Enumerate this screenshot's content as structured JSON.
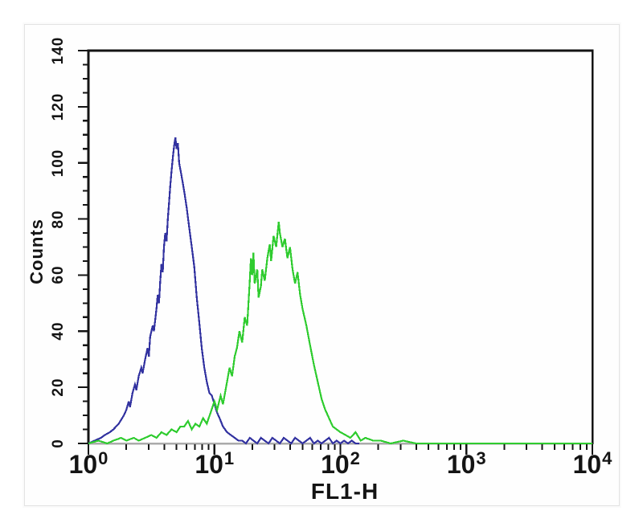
{
  "chart_data": {
    "type": "line",
    "subtype": "flow-cytometry-overlay-histogram",
    "title": "",
    "xlabel": "FL1-H",
    "ylabel": "Counts",
    "x_scale": "log",
    "xlim": [
      1,
      10000
    ],
    "ylim": [
      0,
      140
    ],
    "grid": false,
    "legend": null,
    "y_tick_labels": [
      "0",
      "20",
      "40",
      "60",
      "80",
      "100",
      "120",
      "140"
    ],
    "y_major_step": 20,
    "y_minor_step": 5,
    "x_tick_labels": [
      {
        "base": "10",
        "exp": "0"
      },
      {
        "base": "10",
        "exp": "1"
      },
      {
        "base": "10",
        "exp": "2"
      },
      {
        "base": "10",
        "exp": "3"
      },
      {
        "base": "10",
        "exp": "4"
      }
    ],
    "colors": {
      "blue_series": "#3232A0",
      "green_series": "#2FCC2F",
      "frame": "#141414",
      "baseline": "#ABABAB",
      "text": "#141414"
    },
    "series": [
      {
        "name": "blue-histogram",
        "color": "#3232A0",
        "peak": {
          "x": 4.9,
          "counts": 109
        },
        "points": [
          [
            1.0,
            0
          ],
          [
            1.12,
            1
          ],
          [
            1.26,
            2
          ],
          [
            1.35,
            3
          ],
          [
            1.48,
            4
          ],
          [
            1.58,
            5
          ],
          [
            1.74,
            7
          ],
          [
            1.91,
            10
          ],
          [
            2.0,
            12
          ],
          [
            2.09,
            15
          ],
          [
            2.14,
            13
          ],
          [
            2.24,
            18
          ],
          [
            2.34,
            21
          ],
          [
            2.4,
            19
          ],
          [
            2.51,
            24
          ],
          [
            2.63,
            27
          ],
          [
            2.69,
            25
          ],
          [
            2.82,
            30
          ],
          [
            2.95,
            34
          ],
          [
            3.02,
            31
          ],
          [
            3.09,
            38
          ],
          [
            3.24,
            42
          ],
          [
            3.31,
            40
          ],
          [
            3.47,
            48
          ],
          [
            3.55,
            53
          ],
          [
            3.63,
            50
          ],
          [
            3.72,
            58
          ],
          [
            3.8,
            64
          ],
          [
            3.89,
            61
          ],
          [
            3.98,
            70
          ],
          [
            4.07,
            75
          ],
          [
            4.17,
            72
          ],
          [
            4.27,
            80
          ],
          [
            4.37,
            86
          ],
          [
            4.47,
            92
          ],
          [
            4.57,
            97
          ],
          [
            4.68,
            102
          ],
          [
            4.79,
            106
          ],
          [
            4.9,
            109
          ],
          [
            5.01,
            105
          ],
          [
            5.13,
            107
          ],
          [
            5.25,
            100
          ],
          [
            5.5,
            95
          ],
          [
            5.75,
            90
          ],
          [
            6.03,
            84
          ],
          [
            6.31,
            77
          ],
          [
            6.61,
            70
          ],
          [
            6.92,
            63
          ],
          [
            7.24,
            52
          ],
          [
            7.59,
            43
          ],
          [
            7.94,
            34
          ],
          [
            8.32,
            27
          ],
          [
            8.71,
            22
          ],
          [
            9.12,
            18
          ],
          [
            9.55,
            17
          ],
          [
            10.0,
            14
          ],
          [
            10.5,
            11
          ],
          [
            11.0,
            9
          ],
          [
            11.7,
            6
          ],
          [
            12.6,
            4
          ],
          [
            13.5,
            3
          ],
          [
            14.5,
            2
          ],
          [
            15.5,
            1
          ],
          [
            16.6,
            1
          ],
          [
            17.8,
            0
          ],
          [
            19.1,
            2
          ],
          [
            20.4,
            1
          ],
          [
            21.9,
            0
          ],
          [
            23.4,
            2
          ],
          [
            25.1,
            1
          ],
          [
            26.9,
            0
          ],
          [
            28.8,
            2
          ],
          [
            30.9,
            1
          ],
          [
            33.1,
            0
          ],
          [
            35.5,
            2
          ],
          [
            38.0,
            1
          ],
          [
            40.7,
            0
          ],
          [
            43.7,
            2
          ],
          [
            46.8,
            1
          ],
          [
            50.1,
            0
          ],
          [
            53.7,
            1
          ],
          [
            57.5,
            2
          ],
          [
            61.7,
            0
          ],
          [
            66.1,
            1
          ],
          [
            70.8,
            0
          ],
          [
            75.9,
            1
          ],
          [
            81.3,
            2
          ],
          [
            87.1,
            0
          ],
          [
            93.3,
            1
          ],
          [
            100,
            0
          ],
          [
            107,
            1
          ],
          [
            115,
            0
          ],
          [
            123,
            1
          ],
          [
            132,
            0
          ],
          [
            141,
            0
          ]
        ]
      },
      {
        "name": "green-histogram",
        "color": "#2FCC2F",
        "peak": {
          "x": 32.4,
          "counts": 79
        },
        "points": [
          [
            1.0,
            0
          ],
          [
            1.2,
            1
          ],
          [
            1.41,
            0
          ],
          [
            1.58,
            1
          ],
          [
            1.82,
            2
          ],
          [
            2.0,
            1
          ],
          [
            2.29,
            2
          ],
          [
            2.51,
            1
          ],
          [
            2.82,
            2
          ],
          [
            3.16,
            3
          ],
          [
            3.47,
            2
          ],
          [
            3.8,
            4
          ],
          [
            4.17,
            3
          ],
          [
            4.57,
            5
          ],
          [
            5.01,
            4
          ],
          [
            5.37,
            6
          ],
          [
            5.75,
            6
          ],
          [
            6.17,
            8
          ],
          [
            6.61,
            5
          ],
          [
            7.08,
            7
          ],
          [
            7.59,
            6
          ],
          [
            8.13,
            9
          ],
          [
            8.71,
            7
          ],
          [
            9.33,
            11
          ],
          [
            10.0,
            15
          ],
          [
            10.5,
            12
          ],
          [
            11.2,
            17
          ],
          [
            11.7,
            14
          ],
          [
            12.6,
            22
          ],
          [
            13.2,
            27
          ],
          [
            13.8,
            24
          ],
          [
            14.5,
            31
          ],
          [
            15.1,
            34
          ],
          [
            15.8,
            40
          ],
          [
            16.6,
            36
          ],
          [
            17.4,
            45
          ],
          [
            18.2,
            42
          ],
          [
            19.1,
            58
          ],
          [
            19.5,
            66
          ],
          [
            20.0,
            60
          ],
          [
            20.4,
            68
          ],
          [
            20.9,
            57
          ],
          [
            21.9,
            62
          ],
          [
            22.4,
            52
          ],
          [
            23.4,
            56
          ],
          [
            24.0,
            62
          ],
          [
            25.1,
            58
          ],
          [
            26.3,
            66
          ],
          [
            27.5,
            71
          ],
          [
            28.2,
            65
          ],
          [
            29.5,
            74
          ],
          [
            30.9,
            70
          ],
          [
            32.4,
            79
          ],
          [
            33.1,
            75
          ],
          [
            34.7,
            70
          ],
          [
            36.3,
            73
          ],
          [
            38.0,
            66
          ],
          [
            39.8,
            70
          ],
          [
            41.7,
            62
          ],
          [
            43.7,
            57
          ],
          [
            45.7,
            61
          ],
          [
            47.9,
            53
          ],
          [
            50.1,
            48
          ],
          [
            53.7,
            42
          ],
          [
            57.5,
            35
          ],
          [
            61.7,
            28
          ],
          [
            66.1,
            22
          ],
          [
            70.8,
            16
          ],
          [
            75.9,
            12
          ],
          [
            81.3,
            9
          ],
          [
            87.1,
            6
          ],
          [
            93.3,
            5
          ],
          [
            100,
            4
          ],
          [
            110,
            3
          ],
          [
            120,
            2
          ],
          [
            132,
            4
          ],
          [
            145,
            1
          ],
          [
            158,
            2
          ],
          [
            182,
            1
          ],
          [
            209,
            1
          ],
          [
            251,
            0
          ],
          [
            316,
            1
          ],
          [
            398,
            0
          ],
          [
            631,
            0
          ],
          [
            1000,
            0
          ],
          [
            3162,
            0
          ],
          [
            10000,
            0
          ]
        ]
      }
    ]
  }
}
